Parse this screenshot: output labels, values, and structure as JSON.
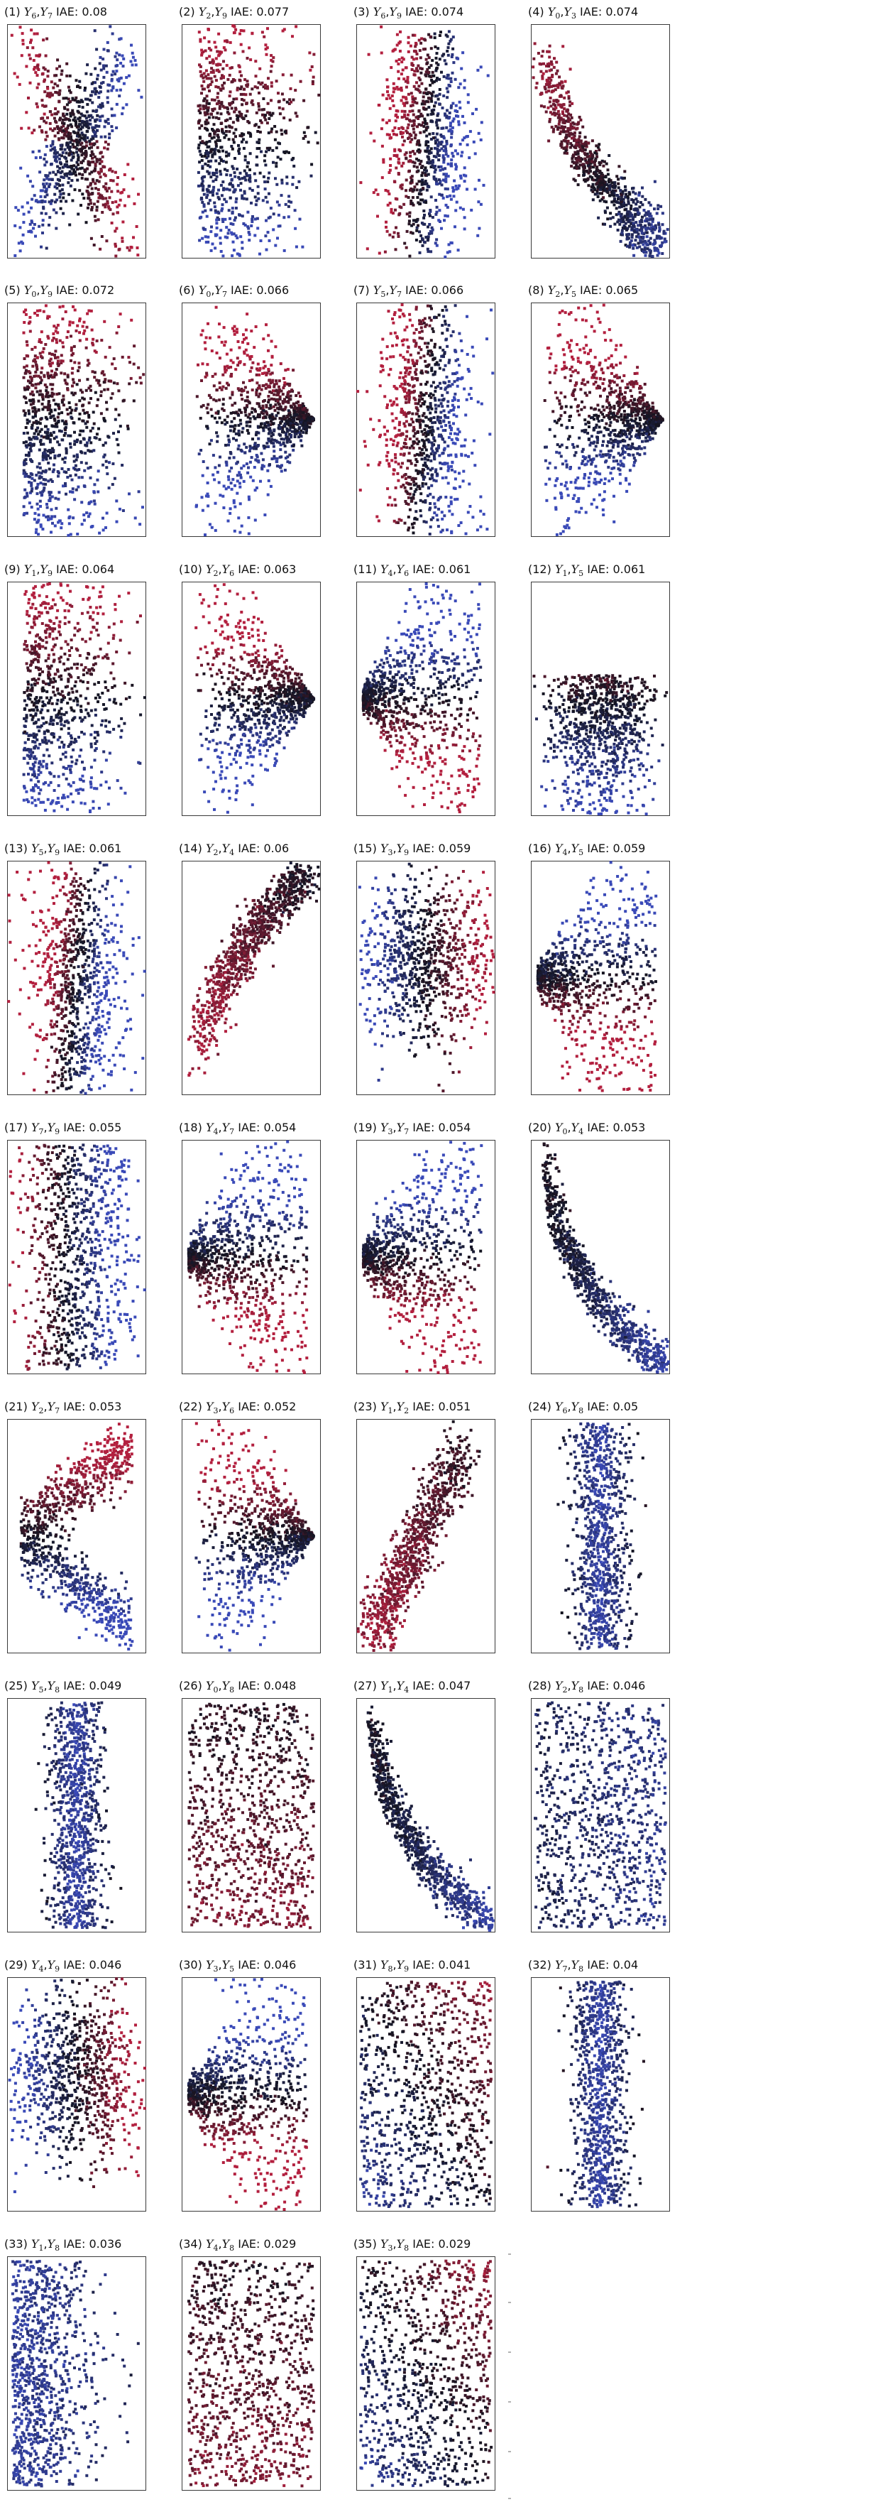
{
  "colors": {
    "positive": "#b3203f",
    "negative": "#3a4ab8",
    "neutral": "#141420",
    "frame": "#3a3a3a",
    "background": "#ffffff"
  },
  "iae_label": "IAE",
  "chart_data": [
    {
      "type": "scatter",
      "index": 1,
      "pair": [
        "6",
        "7"
      ],
      "iae": "0.08"
    },
    {
      "type": "scatter",
      "index": 2,
      "pair": [
        "2",
        "9"
      ],
      "iae": "0.077"
    },
    {
      "type": "scatter",
      "index": 3,
      "pair": [
        "6",
        "9"
      ],
      "iae": "0.074"
    },
    {
      "type": "scatter",
      "index": 4,
      "pair": [
        "0",
        "3"
      ],
      "iae": "0.074"
    },
    {
      "type": "scatter",
      "index": 5,
      "pair": [
        "0",
        "9"
      ],
      "iae": "0.072"
    },
    {
      "type": "scatter",
      "index": 6,
      "pair": [
        "0",
        "7"
      ],
      "iae": "0.066"
    },
    {
      "type": "scatter",
      "index": 7,
      "pair": [
        "5",
        "7"
      ],
      "iae": "0.066"
    },
    {
      "type": "scatter",
      "index": 8,
      "pair": [
        "2",
        "5"
      ],
      "iae": "0.065"
    },
    {
      "type": "scatter",
      "index": 9,
      "pair": [
        "1",
        "9"
      ],
      "iae": "0.064"
    },
    {
      "type": "scatter",
      "index": 10,
      "pair": [
        "2",
        "6"
      ],
      "iae": "0.063"
    },
    {
      "type": "scatter",
      "index": 11,
      "pair": [
        "4",
        "6"
      ],
      "iae": "0.061"
    },
    {
      "type": "scatter",
      "index": 12,
      "pair": [
        "1",
        "5"
      ],
      "iae": "0.061"
    },
    {
      "type": "scatter",
      "index": 13,
      "pair": [
        "5",
        "9"
      ],
      "iae": "0.061"
    },
    {
      "type": "scatter",
      "index": 14,
      "pair": [
        "2",
        "4"
      ],
      "iae": "0.06"
    },
    {
      "type": "scatter",
      "index": 15,
      "pair": [
        "3",
        "9"
      ],
      "iae": "0.059"
    },
    {
      "type": "scatter",
      "index": 16,
      "pair": [
        "4",
        "5"
      ],
      "iae": "0.059"
    },
    {
      "type": "scatter",
      "index": 17,
      "pair": [
        "7",
        "9"
      ],
      "iae": "0.055"
    },
    {
      "type": "scatter",
      "index": 18,
      "pair": [
        "4",
        "7"
      ],
      "iae": "0.054"
    },
    {
      "type": "scatter",
      "index": 19,
      "pair": [
        "3",
        "7"
      ],
      "iae": "0.054"
    },
    {
      "type": "scatter",
      "index": 20,
      "pair": [
        "0",
        "4"
      ],
      "iae": "0.053"
    },
    {
      "type": "scatter",
      "index": 21,
      "pair": [
        "2",
        "7"
      ],
      "iae": "0.053"
    },
    {
      "type": "scatter",
      "index": 22,
      "pair": [
        "3",
        "6"
      ],
      "iae": "0.052"
    },
    {
      "type": "scatter",
      "index": 23,
      "pair": [
        "1",
        "2"
      ],
      "iae": "0.051"
    },
    {
      "type": "scatter",
      "index": 24,
      "pair": [
        "6",
        "8"
      ],
      "iae": "0.05"
    },
    {
      "type": "scatter",
      "index": 25,
      "pair": [
        "5",
        "8"
      ],
      "iae": "0.049"
    },
    {
      "type": "scatter",
      "index": 26,
      "pair": [
        "0",
        "8"
      ],
      "iae": "0.048"
    },
    {
      "type": "scatter",
      "index": 27,
      "pair": [
        "1",
        "4"
      ],
      "iae": "0.047"
    },
    {
      "type": "scatter",
      "index": 28,
      "pair": [
        "2",
        "8"
      ],
      "iae": "0.046"
    },
    {
      "type": "scatter",
      "index": 29,
      "pair": [
        "4",
        "9"
      ],
      "iae": "0.046"
    },
    {
      "type": "scatter",
      "index": 30,
      "pair": [
        "3",
        "5"
      ],
      "iae": "0.046"
    },
    {
      "type": "scatter",
      "index": 31,
      "pair": [
        "8",
        "9"
      ],
      "iae": "0.041"
    },
    {
      "type": "scatter",
      "index": 32,
      "pair": [
        "7",
        "8"
      ],
      "iae": "0.04"
    },
    {
      "type": "scatter",
      "index": 33,
      "pair": [
        "1",
        "8"
      ],
      "iae": "0.036"
    },
    {
      "type": "scatter",
      "index": 34,
      "pair": [
        "4",
        "8"
      ],
      "iae": "0.029"
    },
    {
      "type": "scatter",
      "index": 35,
      "pair": [
        "3",
        "8"
      ],
      "iae": "0.029"
    }
  ]
}
